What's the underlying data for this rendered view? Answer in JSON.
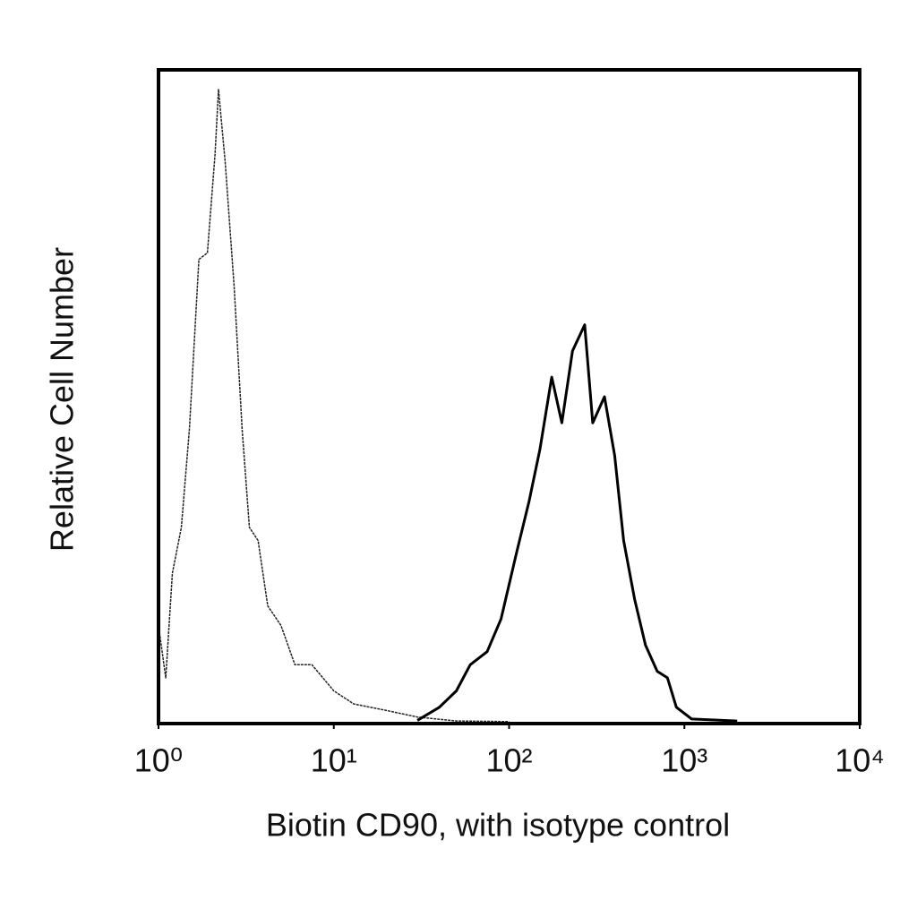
{
  "chart_data": {
    "type": "line",
    "x_label": "Biotin CD90, with isotype control",
    "y_label": "Relative Cell Number",
    "x_log_scale": true,
    "xlim": [
      1,
      10000
    ],
    "xticks": [
      {
        "value": 1,
        "label": "10⁰"
      },
      {
        "value": 10,
        "label": "10¹"
      },
      {
        "value": 100,
        "label": "10²"
      },
      {
        "value": 1000,
        "label": "10³"
      },
      {
        "value": 10000,
        "label": "10⁴"
      }
    ],
    "ylim": [
      0,
      100
    ],
    "grid": false,
    "series": [
      {
        "color": "#222222",
        "x": [
          1,
          1.1,
          1.2,
          1.35,
          1.5,
          1.7,
          1.9,
          2.1,
          2.2,
          2.4,
          2.7,
          3.0,
          3.3,
          3.7,
          4.2,
          5,
          6,
          7.5,
          10,
          13,
          20,
          30,
          50,
          100
        ],
        "values": [
          15,
          7,
          23,
          30,
          45,
          71,
          72,
          87,
          97,
          86,
          67,
          45,
          30,
          28,
          18,
          15,
          9,
          9,
          5,
          3,
          2,
          1,
          0.4,
          0.3
        ]
      },
      {
        "color": "#000000",
        "x": [
          30,
          40,
          50,
          60,
          75,
          90,
          110,
          130,
          150,
          175,
          200,
          230,
          270,
          300,
          350,
          400,
          450,
          520,
          600,
          700,
          800,
          900,
          1100,
          2000
        ],
        "values": [
          0.5,
          2.5,
          5,
          9,
          11,
          16,
          26,
          34,
          42,
          53,
          46,
          57,
          61,
          46,
          50,
          41,
          28,
          19,
          12,
          8,
          7,
          2.5,
          0.7,
          0.4
        ]
      }
    ]
  }
}
